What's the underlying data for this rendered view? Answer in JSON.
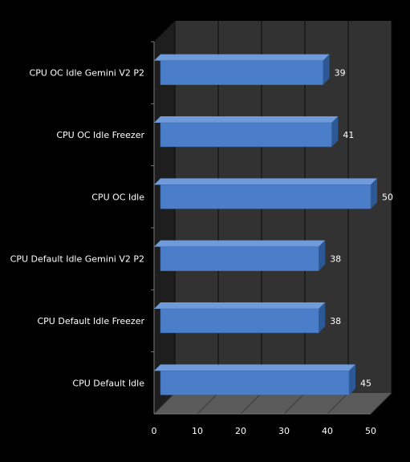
{
  "chart_data": {
    "type": "bar",
    "orientation": "horizontal",
    "style": "3d",
    "categories": [
      "CPU OC Idle Gemini V2  P2",
      "CPU OC Idle Freezer",
      "CPU OC Idle",
      "CPU Default Idle Gemini  V2  P2",
      "CPU Default Idle Freezer",
      "CPU Default Idle"
    ],
    "values": [
      39,
      41,
      50,
      38,
      38,
      45
    ],
    "xlim": [
      0,
      50
    ],
    "xticks": [
      0,
      10,
      20,
      30,
      40,
      50
    ],
    "grid": true,
    "legend": false,
    "colors": {
      "background": "#000000",
      "wall": "#323232",
      "floor": "#5a5a5a",
      "gridline": "#0a0a0a",
      "bar_front": "#4a7ec9",
      "bar_top": "#6f9bdb",
      "bar_side": "#2d5896",
      "text": "#ffffff"
    }
  }
}
